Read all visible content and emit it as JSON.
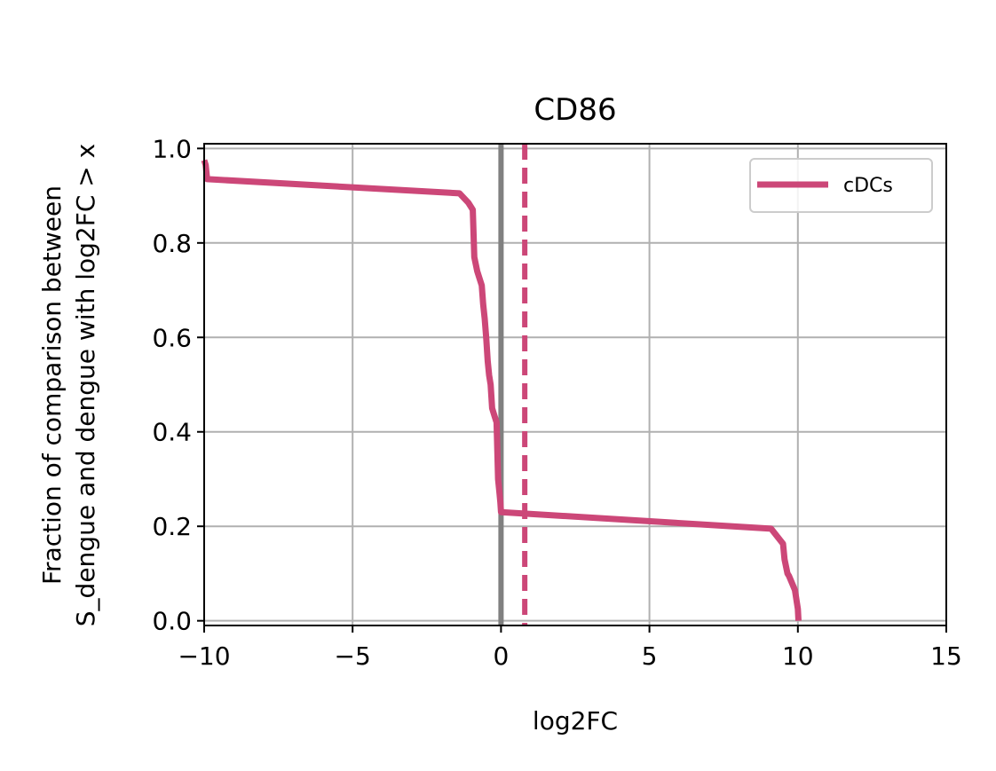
{
  "chart_data": {
    "type": "line",
    "title": "CD86",
    "xlabel": "log2FC",
    "ylabel_lines": [
      "Fraction of comparison between",
      "S_dengue and dengue with log2FC > x"
    ],
    "xlim": [
      -10,
      15
    ],
    "ylim": [
      -0.01,
      1.01
    ],
    "xticks": [
      -10,
      -5,
      0,
      5,
      10,
      15
    ],
    "xtick_labels": [
      "−10",
      "−5",
      "0",
      "5",
      "10",
      "15"
    ],
    "yticks": [
      0.0,
      0.2,
      0.4,
      0.6,
      0.8,
      1.0
    ],
    "ytick_labels": [
      "0.0",
      "0.2",
      "0.4",
      "0.6",
      "0.8",
      "1.0"
    ],
    "grid": true,
    "legend_position": "upper right",
    "series": [
      {
        "name": "cDCs",
        "color": "#cc4778",
        "x": [
          -10,
          -9.95,
          -9.9,
          -1.4,
          -1.1,
          -1.0,
          -0.95,
          -0.9,
          -0.8,
          -0.65,
          -0.6,
          -0.55,
          -0.5,
          -0.45,
          -0.4,
          -0.35,
          -0.3,
          -0.25,
          -0.2,
          -0.15,
          -0.1,
          -0.05,
          -0.02,
          0.0,
          9.1,
          9.5,
          9.55,
          9.65,
          9.7,
          9.9,
          10.0,
          10.02
        ],
        "y": [
          0.975,
          0.965,
          0.935,
          0.905,
          0.885,
          0.875,
          0.87,
          0.77,
          0.74,
          0.71,
          0.67,
          0.64,
          0.6,
          0.55,
          0.52,
          0.5,
          0.45,
          0.44,
          0.43,
          0.42,
          0.3,
          0.27,
          0.25,
          0.23,
          0.195,
          0.163,
          0.13,
          0.1,
          0.095,
          0.065,
          0.025,
          0.0
        ]
      }
    ],
    "reference_lines": [
      {
        "x": 0,
        "color": "#808080",
        "style": "solid"
      },
      {
        "x": 0.8,
        "color": "#cc4778",
        "style": "dashed"
      }
    ]
  }
}
